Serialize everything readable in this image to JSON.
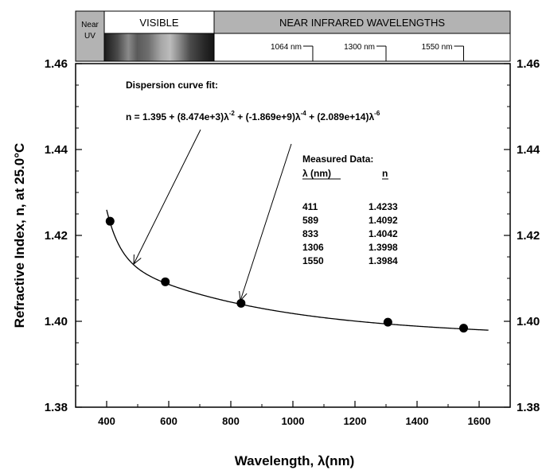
{
  "chart_data": {
    "type": "scatter",
    "title": "",
    "xlabel": "Wavelength, λ(nm)",
    "ylabel": "Refractive Index, n, at 25.0°C",
    "xlim": [
      300,
      1700
    ],
    "ylim": [
      1.38,
      1.46
    ],
    "x_ticks": [
      400,
      600,
      800,
      1000,
      1200,
      1400,
      1600
    ],
    "y_ticks": [
      1.38,
      1.4,
      1.42,
      1.44,
      1.46
    ],
    "y_tick_labels": [
      "1.38",
      "1.40",
      "1.42",
      "1.44",
      "1.46"
    ],
    "right_axis_tick_labels": [
      "1.38",
      "1.40",
      "1.42",
      "1.44",
      "1.46"
    ],
    "grid": false,
    "measured_points": [
      {
        "x": 411,
        "y": 1.4233
      },
      {
        "x": 589,
        "y": 1.4092
      },
      {
        "x": 833,
        "y": 1.4042
      },
      {
        "x": 1306,
        "y": 1.3998
      },
      {
        "x": 1550,
        "y": 1.3984
      }
    ],
    "fit": {
      "A": 1.395,
      "B": 8474,
      "C": -1869000000,
      "D": 208900000000000,
      "x_range": [
        400,
        1630
      ],
      "label": "Dispersion curve fit:",
      "equation": {
        "lead": "n  =  1.395  +  (8.474e+3)λ",
        "exp1": "-2",
        "mid1": "  +  (-1.869e+9)λ",
        "exp2": "-4",
        "mid2": "  +  (2.089e+14)λ",
        "exp3": "-6"
      }
    },
    "measured_table": {
      "title": "Measured Data:",
      "col1_header": "λ (nm)",
      "col2_header": "n",
      "rows": [
        [
          "411",
          "1.4233"
        ],
        [
          "589",
          "1.4092"
        ],
        [
          "833",
          "1.4042"
        ],
        [
          "1306",
          "1.3998"
        ],
        [
          "1550",
          "1.3984"
        ]
      ]
    },
    "spectrum_band": {
      "near_uv_lines": [
        "Near",
        "UV"
      ],
      "visible": "VISIBLE",
      "near_ir": "NEAR INFRARED WAVELENGTHS",
      "markers": [
        {
          "x": 1064,
          "label": "1064 nm"
        },
        {
          "x": 1300,
          "label": "1300 nm"
        },
        {
          "x": 1550,
          "label": "1550 nm"
        }
      ]
    }
  }
}
